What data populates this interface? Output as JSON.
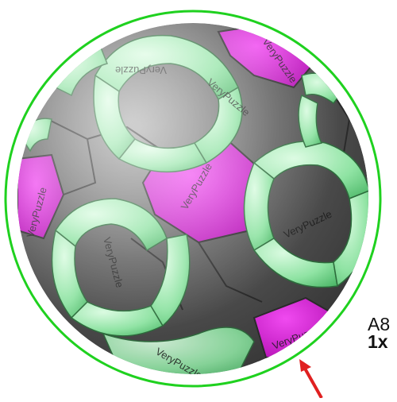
{
  "puzzle": {
    "brand_text": "VeryPuzzle",
    "label_line_1": "A8",
    "label_line_2": "1x"
  },
  "colors": {
    "outline": "#1fd11f",
    "sphere_dark": "#4a4a4a",
    "sphere_mid": "#707070",
    "magenta": "#d81ad8",
    "green_light": "#a6f2b6",
    "green_mid": "#5ed27a",
    "pointer": "#e02020"
  }
}
